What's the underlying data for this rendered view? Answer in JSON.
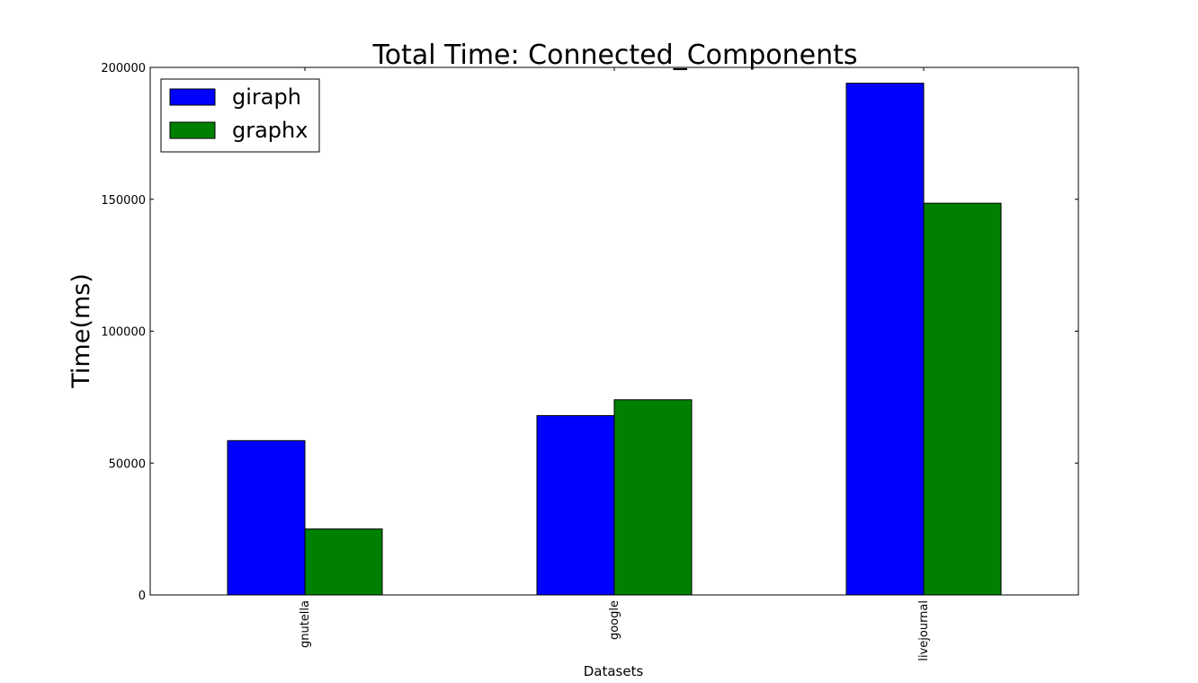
{
  "chart_data": {
    "type": "bar",
    "title": "Total Time: Connected_Components",
    "xlabel": "Datasets",
    "ylabel": "Time(ms)",
    "categories": [
      "gnutella",
      "google",
      "livejournal"
    ],
    "series": [
      {
        "name": "giraph",
        "color": "#0000ff",
        "values": [
          58500,
          68000,
          194000
        ]
      },
      {
        "name": "graphx",
        "color": "#008000",
        "values": [
          25000,
          74000,
          148500
        ]
      }
    ],
    "ylim": [
      0,
      200000
    ],
    "yticks": [
      0,
      50000,
      100000,
      150000,
      200000
    ],
    "ytick_labels": [
      "0",
      "50000",
      "100000",
      "150000",
      "200000"
    ],
    "grid": false,
    "legend_position": "top-left"
  }
}
